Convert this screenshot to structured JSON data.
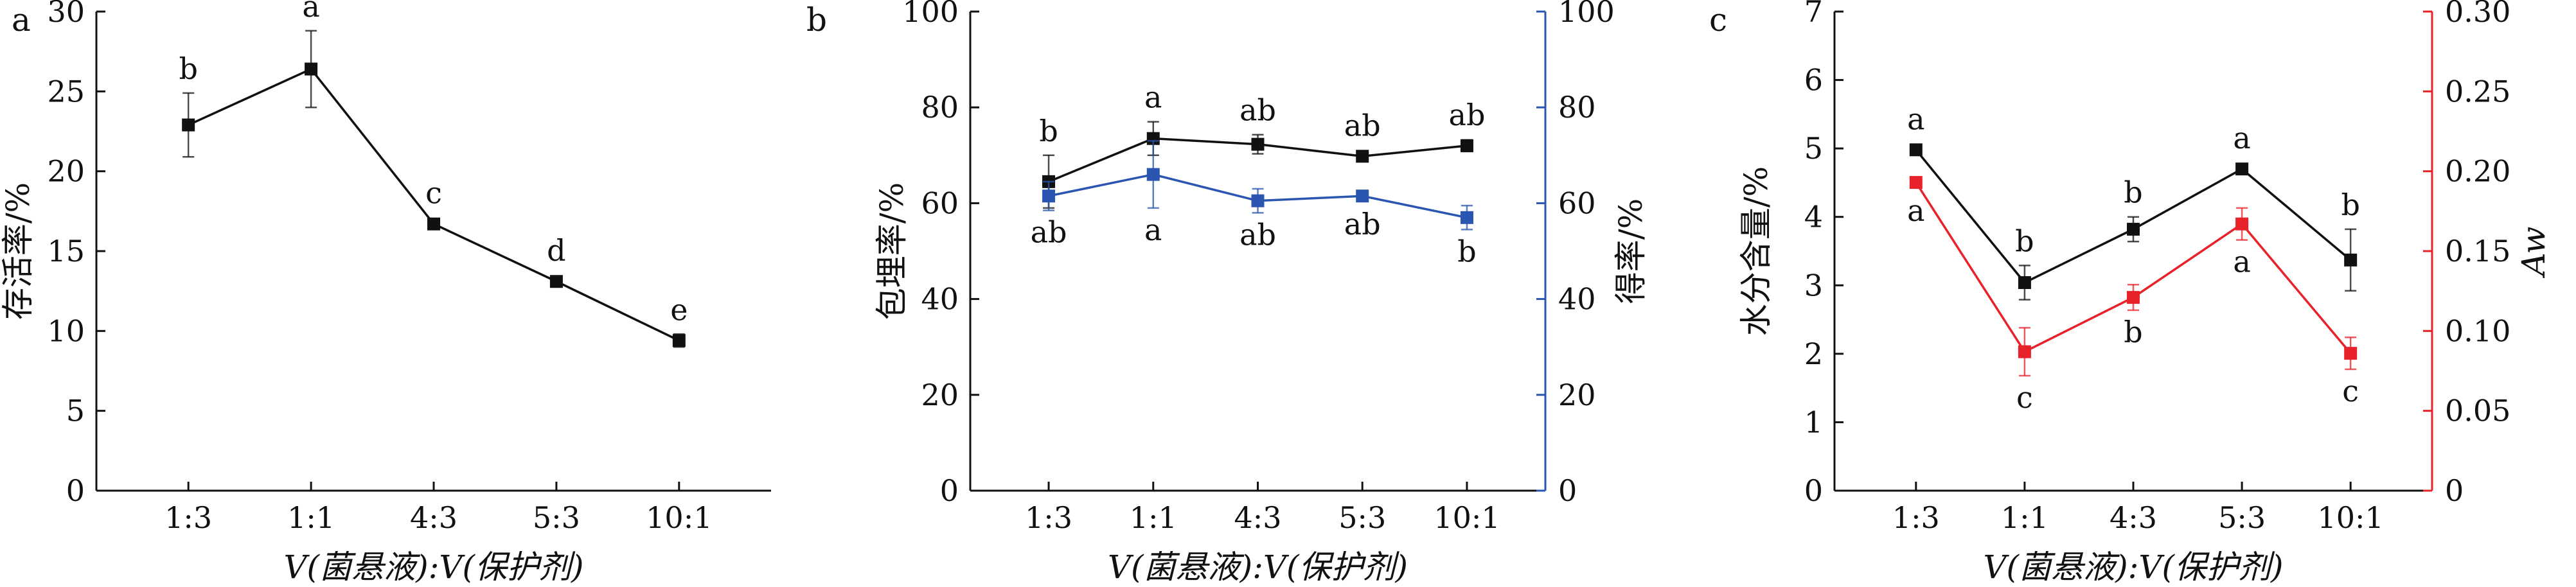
{
  "figure": {
    "panels": [
      "a",
      "b",
      "c"
    ]
  },
  "colors": {
    "black": "#111111",
    "blue": "#2a55b0",
    "red": "#e8222a"
  },
  "chart_data": [
    {
      "panel": "a",
      "type": "line",
      "categories": [
        "1:3",
        "1:1",
        "4:3",
        "5:3",
        "10:1"
      ],
      "xlabel": "V(菌悬液):V(保护剂)",
      "ylabel": "存活率/%",
      "ylim": [
        0,
        30
      ],
      "yticks": [
        0,
        5,
        10,
        15,
        20,
        25,
        30
      ],
      "series": [
        {
          "color": "#111111",
          "axis": "left",
          "values": [
            22.9,
            26.4,
            16.7,
            13.1,
            9.4
          ],
          "errors": [
            2.0,
            2.4,
            0.3,
            0.2,
            0.4
          ],
          "letters": [
            "b",
            "a",
            "c",
            "d",
            "e"
          ],
          "letter_pos": [
            "above",
            "above",
            "above",
            "above",
            "above"
          ]
        }
      ]
    },
    {
      "panel": "b",
      "type": "line",
      "categories": [
        "1:3",
        "1:1",
        "4:3",
        "5:3",
        "10:1"
      ],
      "xlabel": "V(菌悬液):V(保护剂)",
      "ylabel": "包埋率/%",
      "ylabel_right": "得率/%",
      "ylim": [
        0,
        100
      ],
      "ylim_right": [
        0,
        100
      ],
      "yticks": [
        0,
        20,
        40,
        60,
        80,
        100
      ],
      "yticks_right": [
        0,
        20,
        40,
        60,
        80,
        100
      ],
      "series": [
        {
          "color": "#111111",
          "axis": "left",
          "values": [
            64.5,
            73.5,
            72.3,
            69.8,
            72.0
          ],
          "errors": [
            5.5,
            3.5,
            2.0,
            1.0,
            1.2
          ],
          "letters": [
            "b",
            "a",
            "ab",
            "ab",
            "ab"
          ],
          "letter_pos": [
            "above",
            "above",
            "above",
            "above",
            "above"
          ]
        },
        {
          "color": "#2a55b0",
          "axis": "right",
          "values": [
            61.5,
            66.0,
            60.5,
            61.5,
            57.0
          ],
          "errors": [
            3.0,
            7.0,
            2.5,
            1.0,
            2.5
          ],
          "letters": [
            "ab",
            "a",
            "ab",
            "ab",
            "b"
          ],
          "letter_pos": [
            "below",
            "below",
            "below",
            "below",
            "below"
          ]
        }
      ]
    },
    {
      "panel": "c",
      "type": "line",
      "categories": [
        "1:3",
        "1:1",
        "4:3",
        "5:3",
        "10:1"
      ],
      "xlabel": "V(菌悬液):V(保护剂)",
      "ylabel": "水分含量/%",
      "ylabel_right": "Aw",
      "ylim": [
        0,
        7
      ],
      "ylim_right": [
        0,
        0.3
      ],
      "yticks": [
        0,
        1,
        2,
        3,
        4,
        5,
        6,
        7
      ],
      "yticks_right": [
        "0",
        "0.05",
        "0.10",
        "0.15",
        "0.20",
        "0.25",
        "0.30"
      ],
      "series": [
        {
          "color": "#111111",
          "axis": "left",
          "values": [
            4.98,
            3.04,
            3.82,
            4.7,
            3.37
          ],
          "errors": [
            0.06,
            0.25,
            0.18,
            0.05,
            0.45
          ],
          "letters": [
            "a",
            "b",
            "b",
            "a",
            "b"
          ],
          "letter_pos": [
            "above",
            "above",
            "above",
            "above",
            "above"
          ]
        },
        {
          "color": "#e8222a",
          "axis": "right",
          "values": [
            0.193,
            0.087,
            0.121,
            0.167,
            0.086
          ],
          "errors": [
            0.002,
            0.015,
            0.008,
            0.01,
            0.01
          ],
          "letters": [
            "a",
            "c",
            "b",
            "a",
            "c"
          ],
          "letter_pos": [
            "below",
            "below",
            "below",
            "below",
            "below"
          ]
        }
      ]
    }
  ]
}
